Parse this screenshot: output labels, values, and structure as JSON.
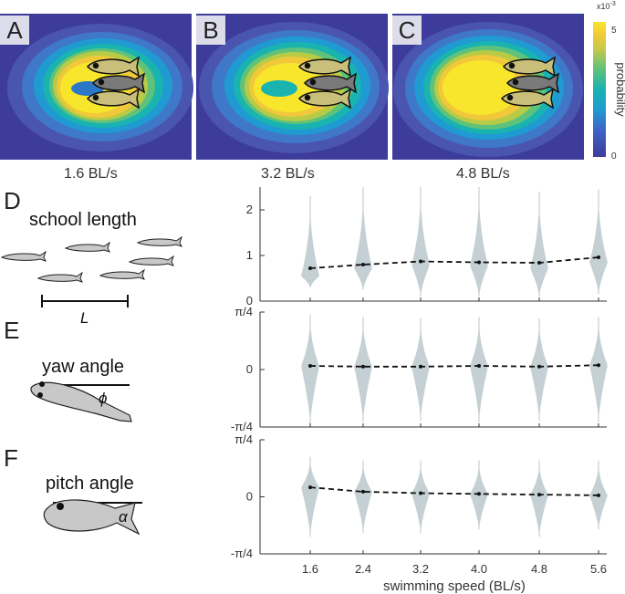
{
  "heatmaps": {
    "panels": [
      {
        "letter": "A",
        "speed": "1.6 BL/s"
      },
      {
        "letter": "B",
        "speed": "3.2 BL/s"
      },
      {
        "letter": "C",
        "speed": "4.8 BL/s"
      }
    ],
    "colorbar": {
      "exponent": "x10",
      "exponent_power": "-3",
      "max": "5",
      "min": "0",
      "label": "probability"
    }
  },
  "schematics": {
    "D": {
      "letter": "D",
      "title": "school length",
      "symbol": "L"
    },
    "E": {
      "letter": "E",
      "title": "yaw angle",
      "symbol": "ϕ"
    },
    "F": {
      "letter": "F",
      "title": "pitch angle",
      "symbol": "α"
    }
  },
  "chart_data": [
    {
      "type": "violin",
      "title": "school length",
      "x": [
        1.6,
        2.4,
        3.2,
        4.0,
        4.8,
        5.6
      ],
      "x_tick_labels": [
        "1.6",
        "2.4",
        "3.2",
        "4.0",
        "4.8",
        "5.6"
      ],
      "median": [
        0.72,
        0.8,
        0.87,
        0.85,
        0.84,
        0.96
      ],
      "ylim": [
        0,
        2.5
      ],
      "y_ticks": [
        0,
        1,
        2
      ],
      "y_tick_labels": [
        "0",
        "1",
        "2"
      ],
      "spread": [
        [
          0.3,
          2.3
        ],
        [
          0.25,
          2.5
        ],
        [
          0.1,
          2.5
        ],
        [
          0.1,
          2.5
        ],
        [
          0.1,
          2.4
        ],
        [
          0.15,
          2.45
        ]
      ],
      "mode": [
        0.55,
        0.72,
        0.8,
        0.78,
        0.72,
        0.85
      ]
    },
    {
      "type": "violin",
      "title": "yaw angle",
      "x": [
        1.6,
        2.4,
        3.2,
        4.0,
        4.8,
        5.6
      ],
      "x_tick_labels": [
        "1.6",
        "2.4",
        "3.2",
        "4.0",
        "4.8",
        "5.6"
      ],
      "median": [
        0.05,
        0.04,
        0.04,
        0.05,
        0.04,
        0.06
      ],
      "ylim": [
        -0.785,
        0.785
      ],
      "y_ticks": [
        -0.785,
        0,
        0.785
      ],
      "y_tick_labels": [
        "-π/4",
        "0",
        "π/4"
      ],
      "spread": [
        [
          -0.75,
          0.75
        ],
        [
          -0.72,
          0.72
        ],
        [
          -0.7,
          0.7
        ],
        [
          -0.72,
          0.72
        ],
        [
          -0.7,
          0.7
        ],
        [
          -0.72,
          0.72
        ]
      ],
      "mode": [
        0.05,
        0.04,
        0.04,
        0.05,
        0.04,
        0.06
      ]
    },
    {
      "type": "violin",
      "title": "pitch angle",
      "x": [
        1.6,
        2.4,
        3.2,
        4.0,
        4.8,
        5.6
      ],
      "x_tick_labels": [
        "1.6",
        "2.4",
        "3.2",
        "4.0",
        "4.8",
        "5.6"
      ],
      "median": [
        0.13,
        0.07,
        0.05,
        0.04,
        0.03,
        0.02
      ],
      "ylim": [
        -0.785,
        0.785
      ],
      "y_ticks": [
        -0.785,
        0,
        0.785
      ],
      "y_tick_labels": [
        "-π/4",
        "0",
        "π/4"
      ],
      "spread": [
        [
          -0.55,
          0.55
        ],
        [
          -0.5,
          0.5
        ],
        [
          -0.5,
          0.5
        ],
        [
          -0.45,
          0.5
        ],
        [
          -0.55,
          0.5
        ],
        [
          -0.45,
          0.5
        ]
      ],
      "mode": [
        0.13,
        0.07,
        0.05,
        0.04,
        0.03,
        0.02
      ],
      "xlabel": "swimming speed (BL/s)"
    }
  ]
}
